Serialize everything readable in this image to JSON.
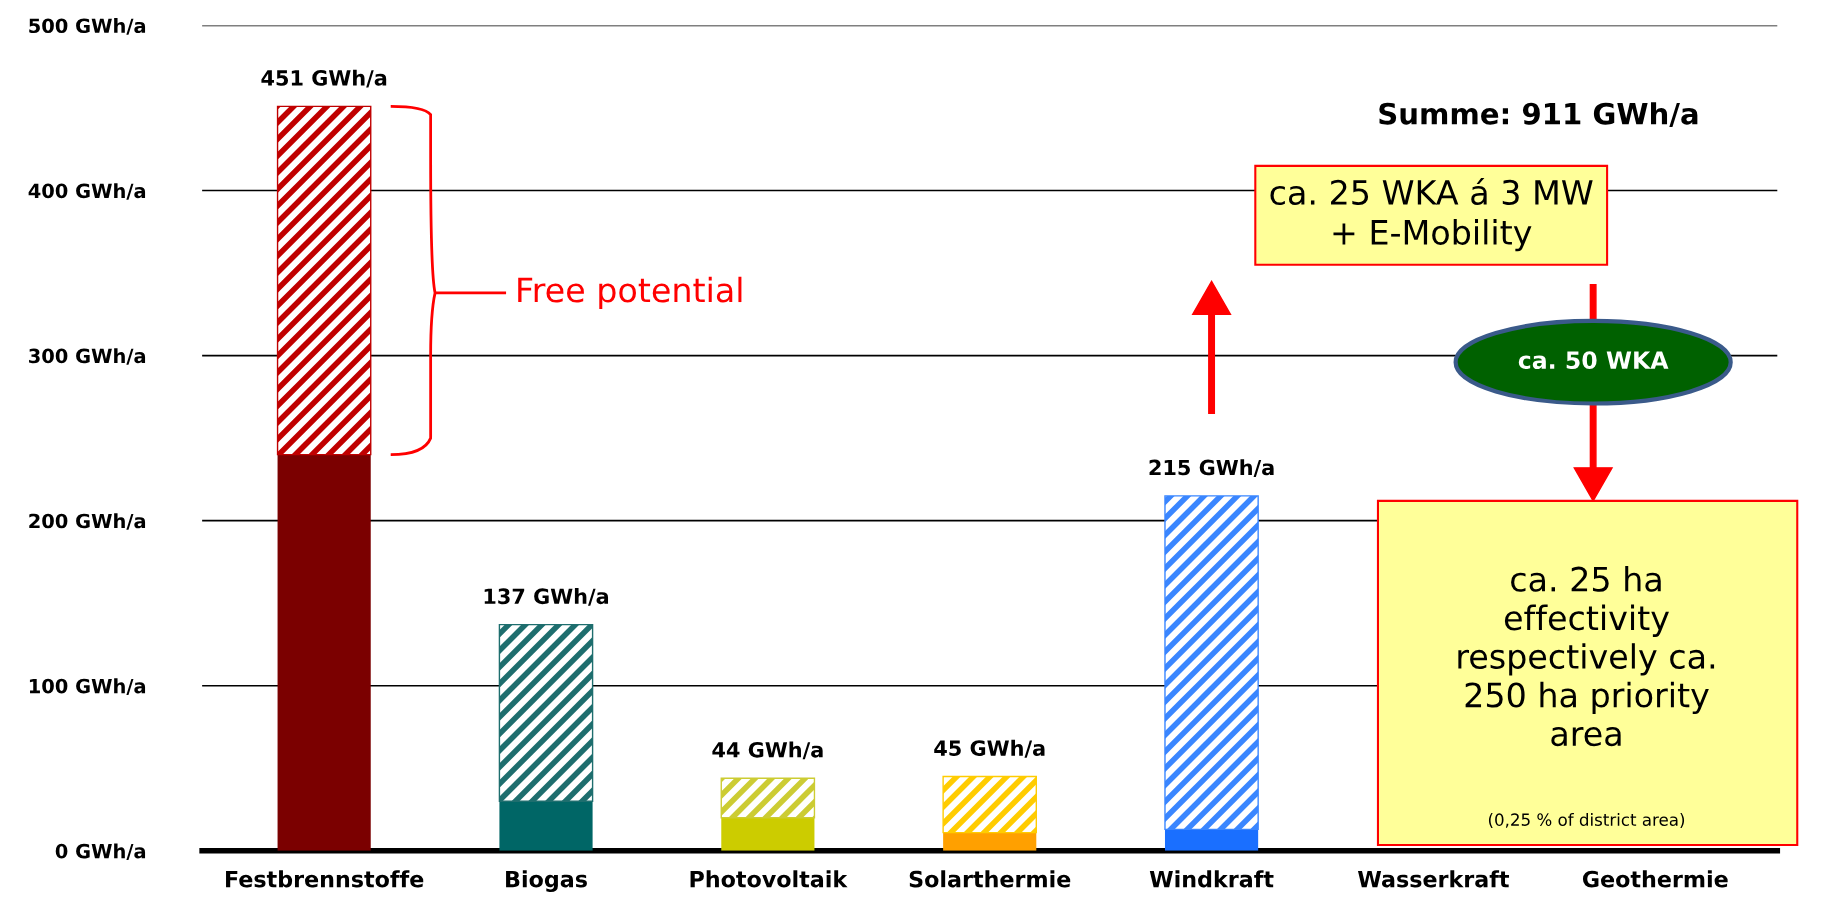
{
  "chart_data": {
    "type": "bar",
    "stacked": true,
    "categories": [
      "Festbrennstoffe",
      "Biogas",
      "Photovoltaik",
      "Solarthermie",
      "Windkraft",
      "Wasserkraft",
      "Geothermie"
    ],
    "series": [
      {
        "colors": [
          "#7b0000",
          "#006666",
          "#cccc00",
          "#ffa000",
          "#1a6fff",
          "#000080",
          "#7b2000"
        ],
        "values": [
          240,
          30,
          20,
          11,
          13,
          null,
          null
        ]
      },
      {
        "colors": [
          "#c00000",
          "#1e6e6e",
          "#cccc33",
          "#ffcc00",
          "#3a86ff",
          "#000080",
          "#7b2000"
        ],
        "values": [
          211,
          107,
          24,
          34,
          202,
          null,
          null
        ]
      }
    ],
    "totals": [
      "451 GWh/a",
      "137 GWh/a",
      "44 GWh/a",
      "45 GWh/a",
      "215 GWh/a",
      null,
      null
    ],
    "ylim": [
      0,
      500
    ],
    "yticks": [
      {
        "value": 0,
        "label": "0 GWh/a"
      },
      {
        "value": 100,
        "label": "100 GWh/a"
      },
      {
        "value": 200,
        "label": "200 GWh/a"
      },
      {
        "value": 300,
        "label": "300 GWh/a"
      },
      {
        "value": 400,
        "label": "400 GWh/a"
      },
      {
        "value": 500,
        "label": "500 GWh/a"
      }
    ],
    "grid": "y",
    "legend": false,
    "annotations": [
      "Summe: 911 GWh/a",
      "Free potential",
      "ca. 25 WKA á 3 MW\n+ E-Mobility",
      "ca. 50 WKA",
      "ca. 25 ha\neffectivity\nrespectively ca.\n250 ha priority\narea",
      "(0,25 % of district area)"
    ]
  }
}
